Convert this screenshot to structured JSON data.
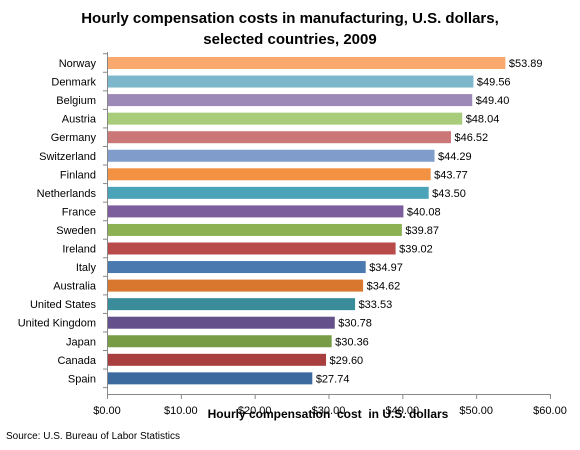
{
  "chart_data": {
    "type": "bar",
    "orientation": "horizontal",
    "title_line1": "Hourly compensation costs in manufacturing,  U.S. dollars,",
    "title_line2": "selected countries, 2009",
    "xlabel": "Hourly compensation  cost  in U.S. dollars",
    "ylabel": "",
    "xlim": [
      0,
      60
    ],
    "x_ticks": [
      0,
      10,
      20,
      30,
      40,
      50,
      60
    ],
    "x_tick_labels": [
      "$0.00",
      "$10.00",
      "$20.00",
      "$30.00",
      "$40.00",
      "$50.00",
      "$60.00"
    ],
    "grid": false,
    "categories": [
      "Norway",
      "Denmark",
      "Belgium",
      "Austria",
      "Germany",
      "Switzerland",
      "Finland",
      "Netherlands",
      "France",
      "Sweden",
      "Ireland",
      "Italy",
      "Australia",
      "United States",
      "United Kingdom",
      "Japan",
      "Canada",
      "Spain"
    ],
    "values": [
      53.89,
      49.56,
      49.4,
      48.04,
      46.52,
      44.29,
      43.77,
      43.5,
      40.08,
      39.87,
      39.02,
      34.97,
      34.62,
      33.53,
      30.78,
      30.36,
      29.6,
      27.74
    ],
    "value_labels": [
      "$53.89",
      "$49.56",
      "$49.40",
      "$48.04",
      "$46.52",
      "$44.29",
      "$43.77",
      "$43.50",
      "$40.08",
      "$39.87",
      "$39.02",
      "$34.97",
      "$34.62",
      "$33.53",
      "$30.78",
      "$30.36",
      "$29.60",
      "$27.74"
    ],
    "colors": [
      "#F9A96E",
      "#7DB7CB",
      "#9C89B8",
      "#A8CC7A",
      "#CC7777",
      "#7F9CCB",
      "#F29242",
      "#4AA3B8",
      "#7B5E9B",
      "#8CB152",
      "#B94A4A",
      "#4A79B0",
      "#D9772E",
      "#3A8C9B",
      "#64508B",
      "#779C45",
      "#A83E3E",
      "#3D6A9E"
    ]
  },
  "source": "Source: U.S. Bureau of Labor Statistics"
}
